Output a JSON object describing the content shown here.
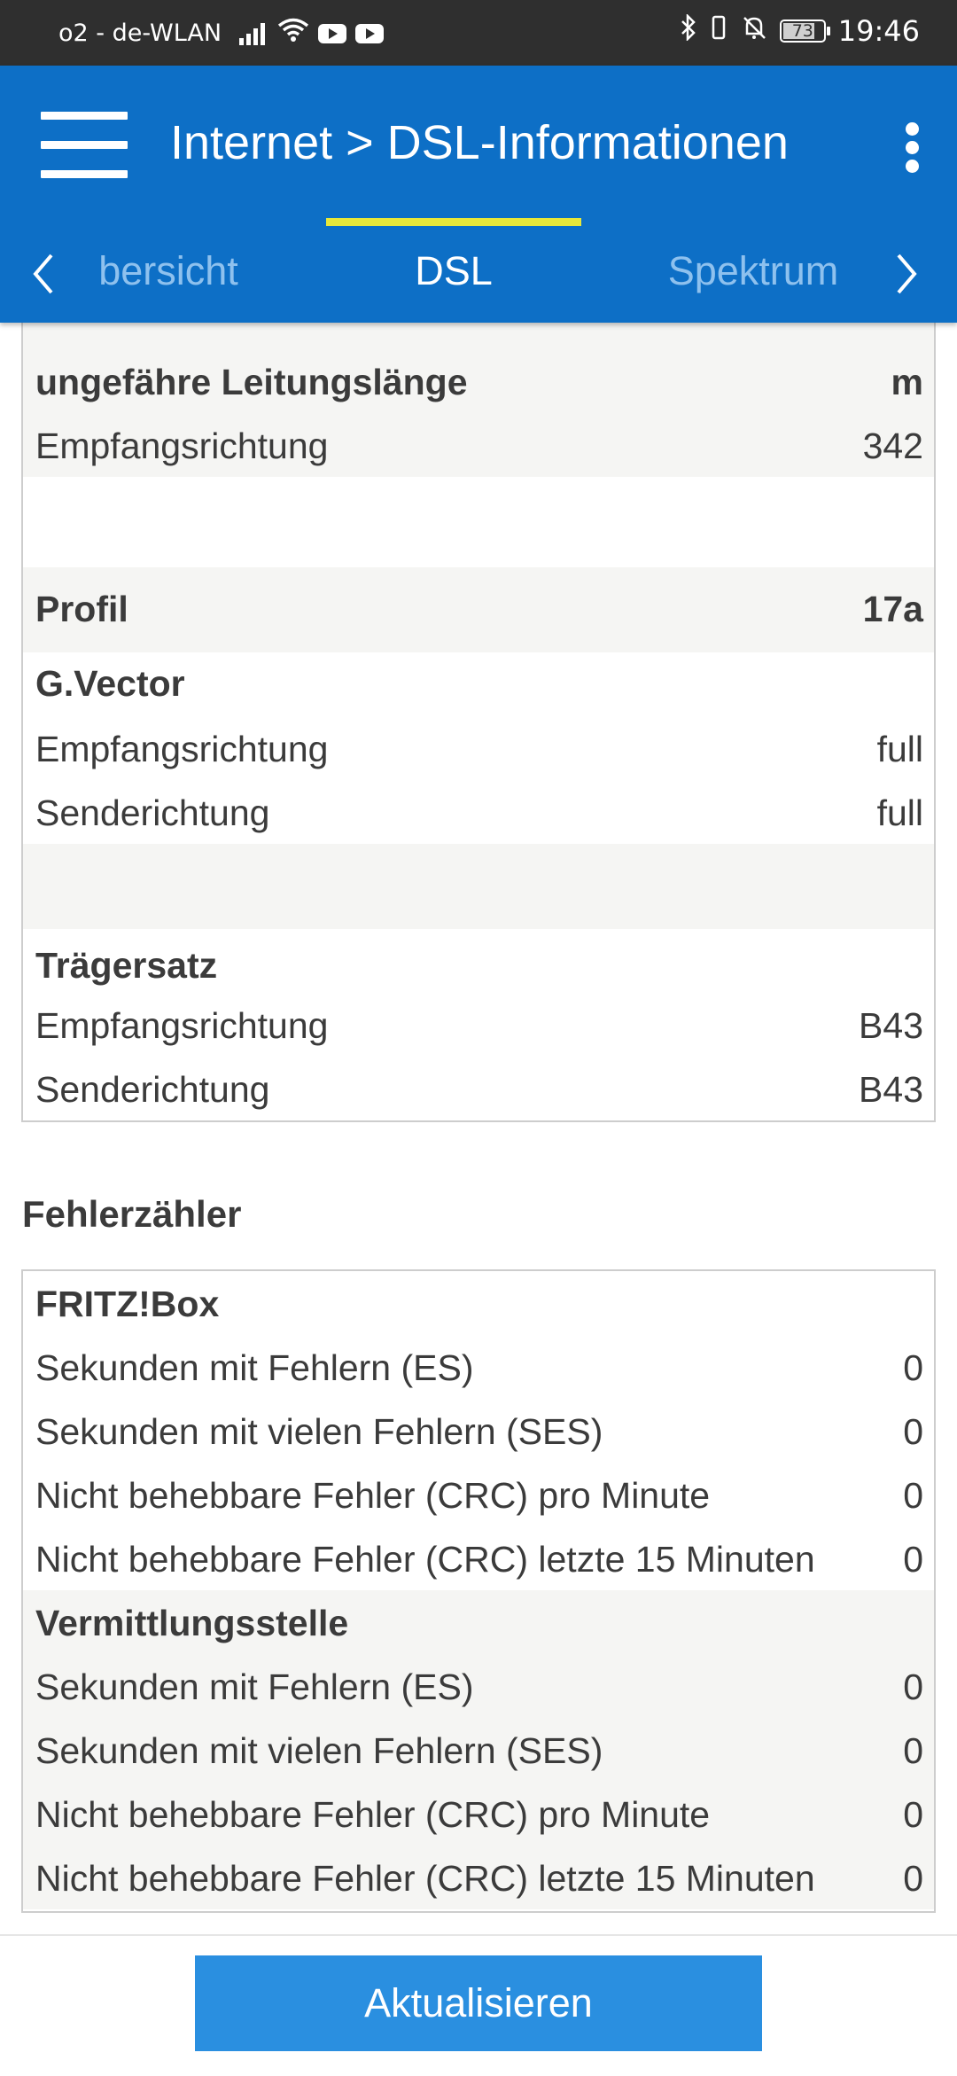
{
  "status_bar": {
    "carrier": "o2 - de-WLAN",
    "battery": "73",
    "time": "19:46"
  },
  "app_bar": {
    "title": "Internet > DSL-Informationen",
    "tabs": [
      {
        "label": "bersicht",
        "active": false
      },
      {
        "label": "DSL",
        "active": true
      },
      {
        "label": "Spektrum",
        "active": false
      }
    ]
  },
  "line_info": {
    "heading": "ungefähre Leitungslänge",
    "heading_unit": "m",
    "rows": [
      {
        "label": "Empfangsrichtung",
        "value": "342"
      }
    ]
  },
  "profile": {
    "label": "Profil",
    "value": "17a"
  },
  "g_vector": {
    "heading": "G.Vector",
    "rows": [
      {
        "label": "Empfangsrichtung",
        "value": "full"
      },
      {
        "label": "Senderichtung",
        "value": "full"
      }
    ]
  },
  "carrier_set": {
    "heading": "Trägersatz",
    "rows": [
      {
        "label": "Empfangsrichtung",
        "value": "B43"
      },
      {
        "label": "Senderichtung",
        "value": "B43"
      }
    ]
  },
  "error_counter": {
    "title": "Fehlerzähler",
    "groups": [
      {
        "heading": "FRITZ!Box",
        "rows": [
          {
            "label": "Sekunden mit Fehlern (ES)",
            "value": "0"
          },
          {
            "label": "Sekunden mit vielen Fehlern (SES)",
            "value": "0"
          },
          {
            "label": "Nicht behebbare Fehler (CRC) pro Minute",
            "value": "0"
          },
          {
            "label": "Nicht behebbare Fehler (CRC) letzte 15 Minuten",
            "value": "0"
          }
        ]
      },
      {
        "heading": "Vermittlungsstelle",
        "rows": [
          {
            "label": "Sekunden mit Fehlern (ES)",
            "value": "0"
          },
          {
            "label": "Sekunden mit vielen Fehlern (SES)",
            "value": "0"
          },
          {
            "label": "Nicht behebbare Fehler (CRC) pro Minute",
            "value": "0"
          },
          {
            "label": "Nicht behebbare Fehler (CRC) letzte 15 Minuten",
            "value": "0"
          }
        ]
      }
    ]
  },
  "footer": {
    "refresh_label": "Aktualisieren"
  },
  "colors": {
    "primary": "#0d6fc6",
    "tab_indicator": "#e8e83a",
    "button": "#2a8fe0"
  }
}
